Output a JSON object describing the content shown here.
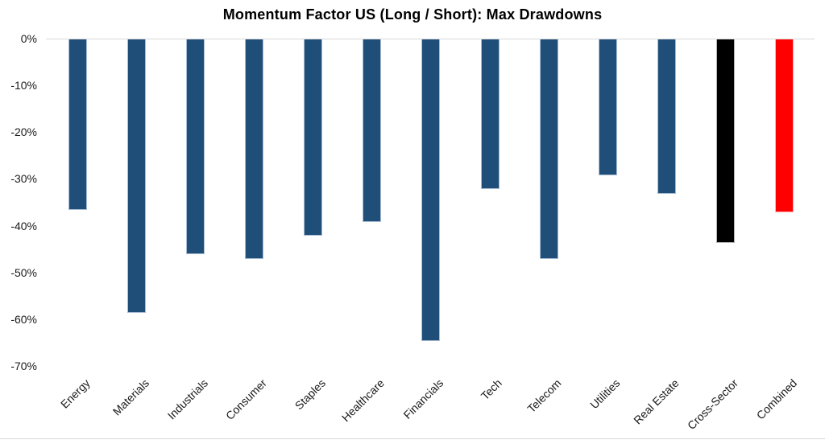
{
  "chart_data": {
    "type": "bar",
    "title": "Momentum Factor US (Long / Short): Max Drawdowns",
    "xlabel": "",
    "ylabel": "",
    "categories": [
      "Energy",
      "Materials",
      "Industrials",
      "Consumer",
      "Staples",
      "Healthcare",
      "Financials",
      "Tech",
      "Telecom",
      "Utilities",
      "Real Estate",
      "Cross-Sector",
      "Combined"
    ],
    "values": [
      -36.5,
      -58.5,
      -46,
      -47,
      -42,
      -39,
      -64.5,
      -32,
      -47,
      -29,
      -33,
      -43.5,
      -37
    ],
    "unit": "%",
    "bar_colors": [
      "#1F4E79",
      "#1F4E79",
      "#1F4E79",
      "#1F4E79",
      "#1F4E79",
      "#1F4E79",
      "#1F4E79",
      "#1F4E79",
      "#1F4E79",
      "#1F4E79",
      "#1F4E79",
      "#000000",
      "#FF0000"
    ],
    "bar_border_colors": [
      "#A9BDD4",
      "#A9BDD4",
      "#A9BDD4",
      "#A9BDD4",
      "#A9BDD4",
      "#A9BDD4",
      "#A9BDD4",
      "#A9BDD4",
      "#A9BDD4",
      "#A9BDD4",
      "#A9BDD4",
      "#B3B3B3",
      "#FFB3B3"
    ],
    "ylim": [
      -70,
      0
    ],
    "ytick_labels": [
      "0%",
      "-10%",
      "-20%",
      "-30%",
      "-40%",
      "-50%",
      "-60%",
      "-70%"
    ],
    "grid": "zero-line-only",
    "gridline_color": "#D9D9D9",
    "legend": "none",
    "x_label_rotation_deg": -45
  }
}
